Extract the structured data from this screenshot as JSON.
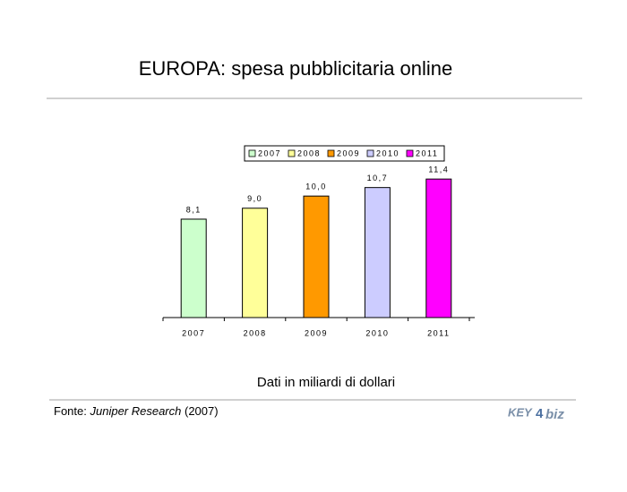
{
  "chart_data": {
    "type": "bar",
    "title": "EUROPA: spesa pubblicitaria online",
    "categories": [
      "2007",
      "2008",
      "2009",
      "2010",
      "2011"
    ],
    "values": [
      8.1,
      9.0,
      10.0,
      10.7,
      11.4
    ],
    "value_labels": [
      "8,1",
      "9,0",
      "10,0",
      "10,7",
      "11,4"
    ],
    "colors": [
      "#ccffcc",
      "#ffff99",
      "#ff9900",
      "#ccccff",
      "#ff00ff"
    ],
    "ylim": [
      0,
      12
    ],
    "legend": "top",
    "note": "Dati in miliardi di dollari",
    "source": {
      "prefix": "Fonte:",
      "name": "Juniper Research",
      "year": "(2007)"
    },
    "logo": {
      "left": "KEY",
      "middle": "4",
      "right": "biz"
    }
  }
}
